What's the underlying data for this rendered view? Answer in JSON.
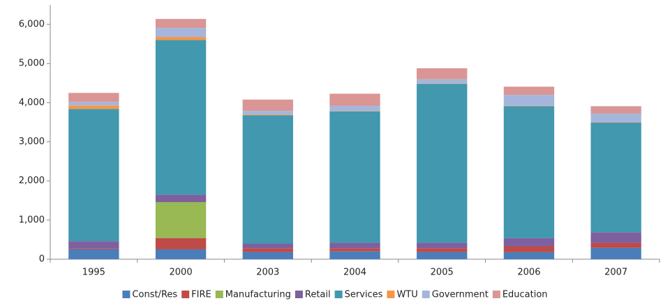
{
  "chart_data": {
    "type": "stacked_bar",
    "categories": [
      "1995",
      "2000",
      "2003",
      "2004",
      "2005",
      "2006",
      "2007"
    ],
    "series": [
      {
        "name": "Const/Res",
        "color": "#4a7ebb",
        "values": [
          250,
          250,
          180,
          200,
          180,
          180,
          290
        ]
      },
      {
        "name": "FIRE",
        "color": "#be4b48",
        "values": [
          20,
          290,
          100,
          80,
          100,
          150,
          130
        ]
      },
      {
        "name": "Manufacturing",
        "color": "#98b954",
        "values": [
          0,
          920,
          0,
          0,
          0,
          0,
          0
        ]
      },
      {
        "name": "Retail",
        "color": "#7d60a0",
        "values": [
          190,
          190,
          120,
          140,
          140,
          210,
          270
        ]
      },
      {
        "name": "Services",
        "color": "#4198af",
        "values": [
          3380,
          3950,
          3280,
          3360,
          4060,
          3370,
          2800
        ]
      },
      {
        "name": "WTU",
        "color": "#f79646",
        "values": [
          90,
          80,
          20,
          10,
          10,
          10,
          10
        ]
      },
      {
        "name": "Government",
        "color": "#a5b6dc",
        "values": [
          90,
          230,
          90,
          130,
          110,
          280,
          220
        ]
      },
      {
        "name": "Education",
        "color": "#d99694",
        "values": [
          230,
          230,
          290,
          310,
          280,
          210,
          190
        ]
      }
    ],
    "ylim": [
      0,
      6500
    ],
    "yticks": [
      0,
      {
        "value": 1000,
        "label": "1,000"
      },
      {
        "value": 2000,
        "label": "2,000"
      },
      {
        "value": 3000,
        "label": "3,000"
      },
      {
        "value": 4000,
        "label": "4,000"
      },
      {
        "value": 5000,
        "label": "5,000"
      },
      {
        "value": 6000,
        "label": "6,000"
      }
    ],
    "grid": false,
    "legend": "bottom"
  }
}
